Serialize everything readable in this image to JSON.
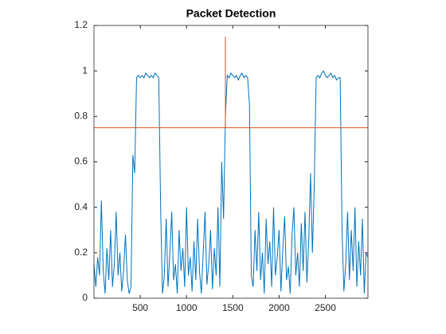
{
  "chart_data": {
    "type": "line",
    "title": "Packet Detection",
    "xlim": [
      0,
      2960
    ],
    "xticks": [
      500,
      1000,
      1500,
      2000,
      2500
    ],
    "ylim": [
      0,
      1.2
    ],
    "yticks": [
      0,
      0.2,
      0.4,
      0.6,
      0.8,
      1,
      1.2
    ],
    "series": [
      {
        "color": "#0072bd",
        "x": [
          0,
          20,
          40,
          60,
          80,
          100,
          120,
          140,
          160,
          180,
          200,
          220,
          240,
          260,
          280,
          300,
          320,
          340,
          360,
          380,
          400,
          420,
          440,
          460,
          480,
          500,
          520,
          540,
          560,
          580,
          600,
          620,
          640,
          660,
          680,
          700,
          720,
          740,
          760,
          780,
          800,
          820,
          840,
          860,
          880,
          900,
          920,
          940,
          960,
          980,
          1000,
          1020,
          1040,
          1060,
          1080,
          1100,
          1120,
          1140,
          1160,
          1180,
          1200,
          1220,
          1240,
          1260,
          1280,
          1300,
          1320,
          1340,
          1360,
          1380,
          1400,
          1420,
          1440,
          1460,
          1480,
          1500,
          1520,
          1540,
          1560,
          1580,
          1600,
          1620,
          1640,
          1660,
          1680,
          1700,
          1720,
          1740,
          1760,
          1780,
          1800,
          1820,
          1840,
          1860,
          1880,
          1900,
          1920,
          1940,
          1960,
          1980,
          2000,
          2020,
          2040,
          2060,
          2080,
          2100,
          2120,
          2140,
          2160,
          2180,
          2200,
          2220,
          2240,
          2260,
          2280,
          2300,
          2320,
          2340,
          2360,
          2380,
          2400,
          2420,
          2440,
          2460,
          2480,
          2500,
          2520,
          2540,
          2560,
          2580,
          2600,
          2620,
          2640,
          2660,
          2680,
          2700,
          2720,
          2740,
          2760,
          2780,
          2800,
          2820,
          2840,
          2860,
          2880,
          2900,
          2920,
          2940,
          2960
        ],
        "values": [
          0.15,
          0.05,
          0.18,
          0.1,
          0.43,
          0.12,
          0.02,
          0.22,
          0.08,
          0.3,
          0.05,
          0.15,
          0.38,
          0.1,
          0.2,
          0.03,
          0.12,
          0.28,
          0.08,
          0.02,
          0.05,
          0.63,
          0.55,
          0.97,
          0.98,
          0.97,
          0.98,
          0.97,
          0.99,
          0.98,
          0.97,
          0.98,
          0.97,
          0.99,
          0.98,
          0.97,
          0.4,
          0.02,
          0.1,
          0.35,
          0.05,
          0.2,
          0.38,
          0.08,
          0.15,
          0.02,
          0.3,
          0.12,
          0.22,
          0.05,
          0.4,
          0.1,
          0.18,
          0.03,
          0.25,
          0.08,
          0.35,
          0.12,
          0.02,
          0.2,
          0.38,
          0.06,
          0.15,
          0.3,
          0.04,
          0.22,
          0.1,
          0.4,
          0.05,
          0.6,
          0.35,
          0.8,
          0.98,
          0.97,
          0.99,
          0.98,
          0.97,
          0.98,
          0.96,
          0.98,
          0.99,
          0.97,
          0.98,
          0.97,
          0.85,
          0.1,
          0.05,
          0.3,
          0.12,
          0.38,
          0.08,
          0.2,
          0.02,
          0.35,
          0.15,
          0.25,
          0.05,
          0.4,
          0.1,
          0.18,
          0.3,
          0.03,
          0.22,
          0.36,
          0.08,
          0.14,
          0.02,
          0.28,
          0.4,
          0.1,
          0.2,
          0.05,
          0.33,
          0.12,
          0.38,
          0.07,
          0.25,
          0.55,
          0.2,
          0.5,
          0.97,
          0.98,
          0.97,
          0.99,
          1.0,
          0.98,
          0.97,
          0.98,
          0.99,
          0.97,
          0.98,
          0.96,
          0.97,
          0.97,
          0.3,
          0.03,
          0.15,
          0.38,
          0.08,
          0.3,
          0.12,
          0.4,
          0.05,
          0.25,
          0.1,
          0.35,
          0.02,
          0.2,
          0.18
        ]
      },
      {
        "color": "#d95319",
        "x": [
          0,
          2960
        ],
        "values": [
          0.75,
          0.75
        ]
      },
      {
        "color": "#d95319",
        "x": [
          1420,
          1420
        ],
        "values": [
          0.75,
          1.15
        ]
      }
    ]
  }
}
